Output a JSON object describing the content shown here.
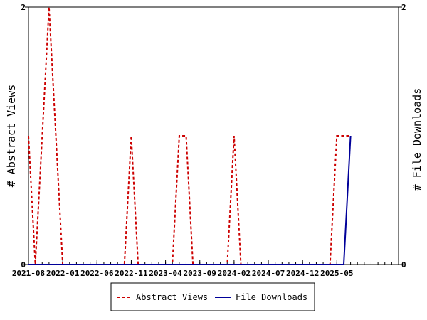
{
  "chart_data": {
    "type": "line",
    "title": "",
    "x_tick_labels": [
      "2021-08",
      "2022-01",
      "2022-06",
      "2022-11",
      "2023-04",
      "2023-09",
      "2024-02",
      "2024-07",
      "2024-12",
      "2025-05"
    ],
    "y_left": {
      "label": "# Abstract Views",
      "ticks": [
        "0",
        "2"
      ],
      "range": [
        0,
        2
      ]
    },
    "y_right": {
      "label": "# File Downloads",
      "ticks": [
        "0",
        "2"
      ],
      "range": [
        0,
        2
      ]
    },
    "x_range": [
      "2021-08",
      "2026-02"
    ],
    "grid": false,
    "legend_position": "bottom",
    "series": [
      {
        "name": "Abstract Views",
        "axis": "left",
        "color": "#cc0000",
        "style": "dashed",
        "points": [
          [
            "2021-08",
            1
          ],
          [
            "2021-09",
            0
          ],
          [
            "2021-10",
            1
          ],
          [
            "2021-11",
            2
          ],
          [
            "2021-12",
            1
          ],
          [
            "2022-01",
            0
          ],
          [
            "2022-10",
            0
          ],
          [
            "2022-11",
            1
          ],
          [
            "2022-12",
            0
          ],
          [
            "2023-05",
            0
          ],
          [
            "2023-06",
            1
          ],
          [
            "2023-07",
            1
          ],
          [
            "2023-08",
            0
          ],
          [
            "2024-01",
            0
          ],
          [
            "2024-02",
            1
          ],
          [
            "2024-03",
            0
          ],
          [
            "2025-04",
            0
          ],
          [
            "2025-05",
            1
          ],
          [
            "2025-06",
            1
          ],
          [
            "2025-07",
            1
          ]
        ]
      },
      {
        "name": "File Downloads",
        "axis": "right",
        "color": "#000099",
        "style": "solid",
        "points": [
          [
            "2021-08",
            0
          ],
          [
            "2025-06",
            0
          ],
          [
            "2025-07",
            1
          ]
        ]
      }
    ]
  }
}
